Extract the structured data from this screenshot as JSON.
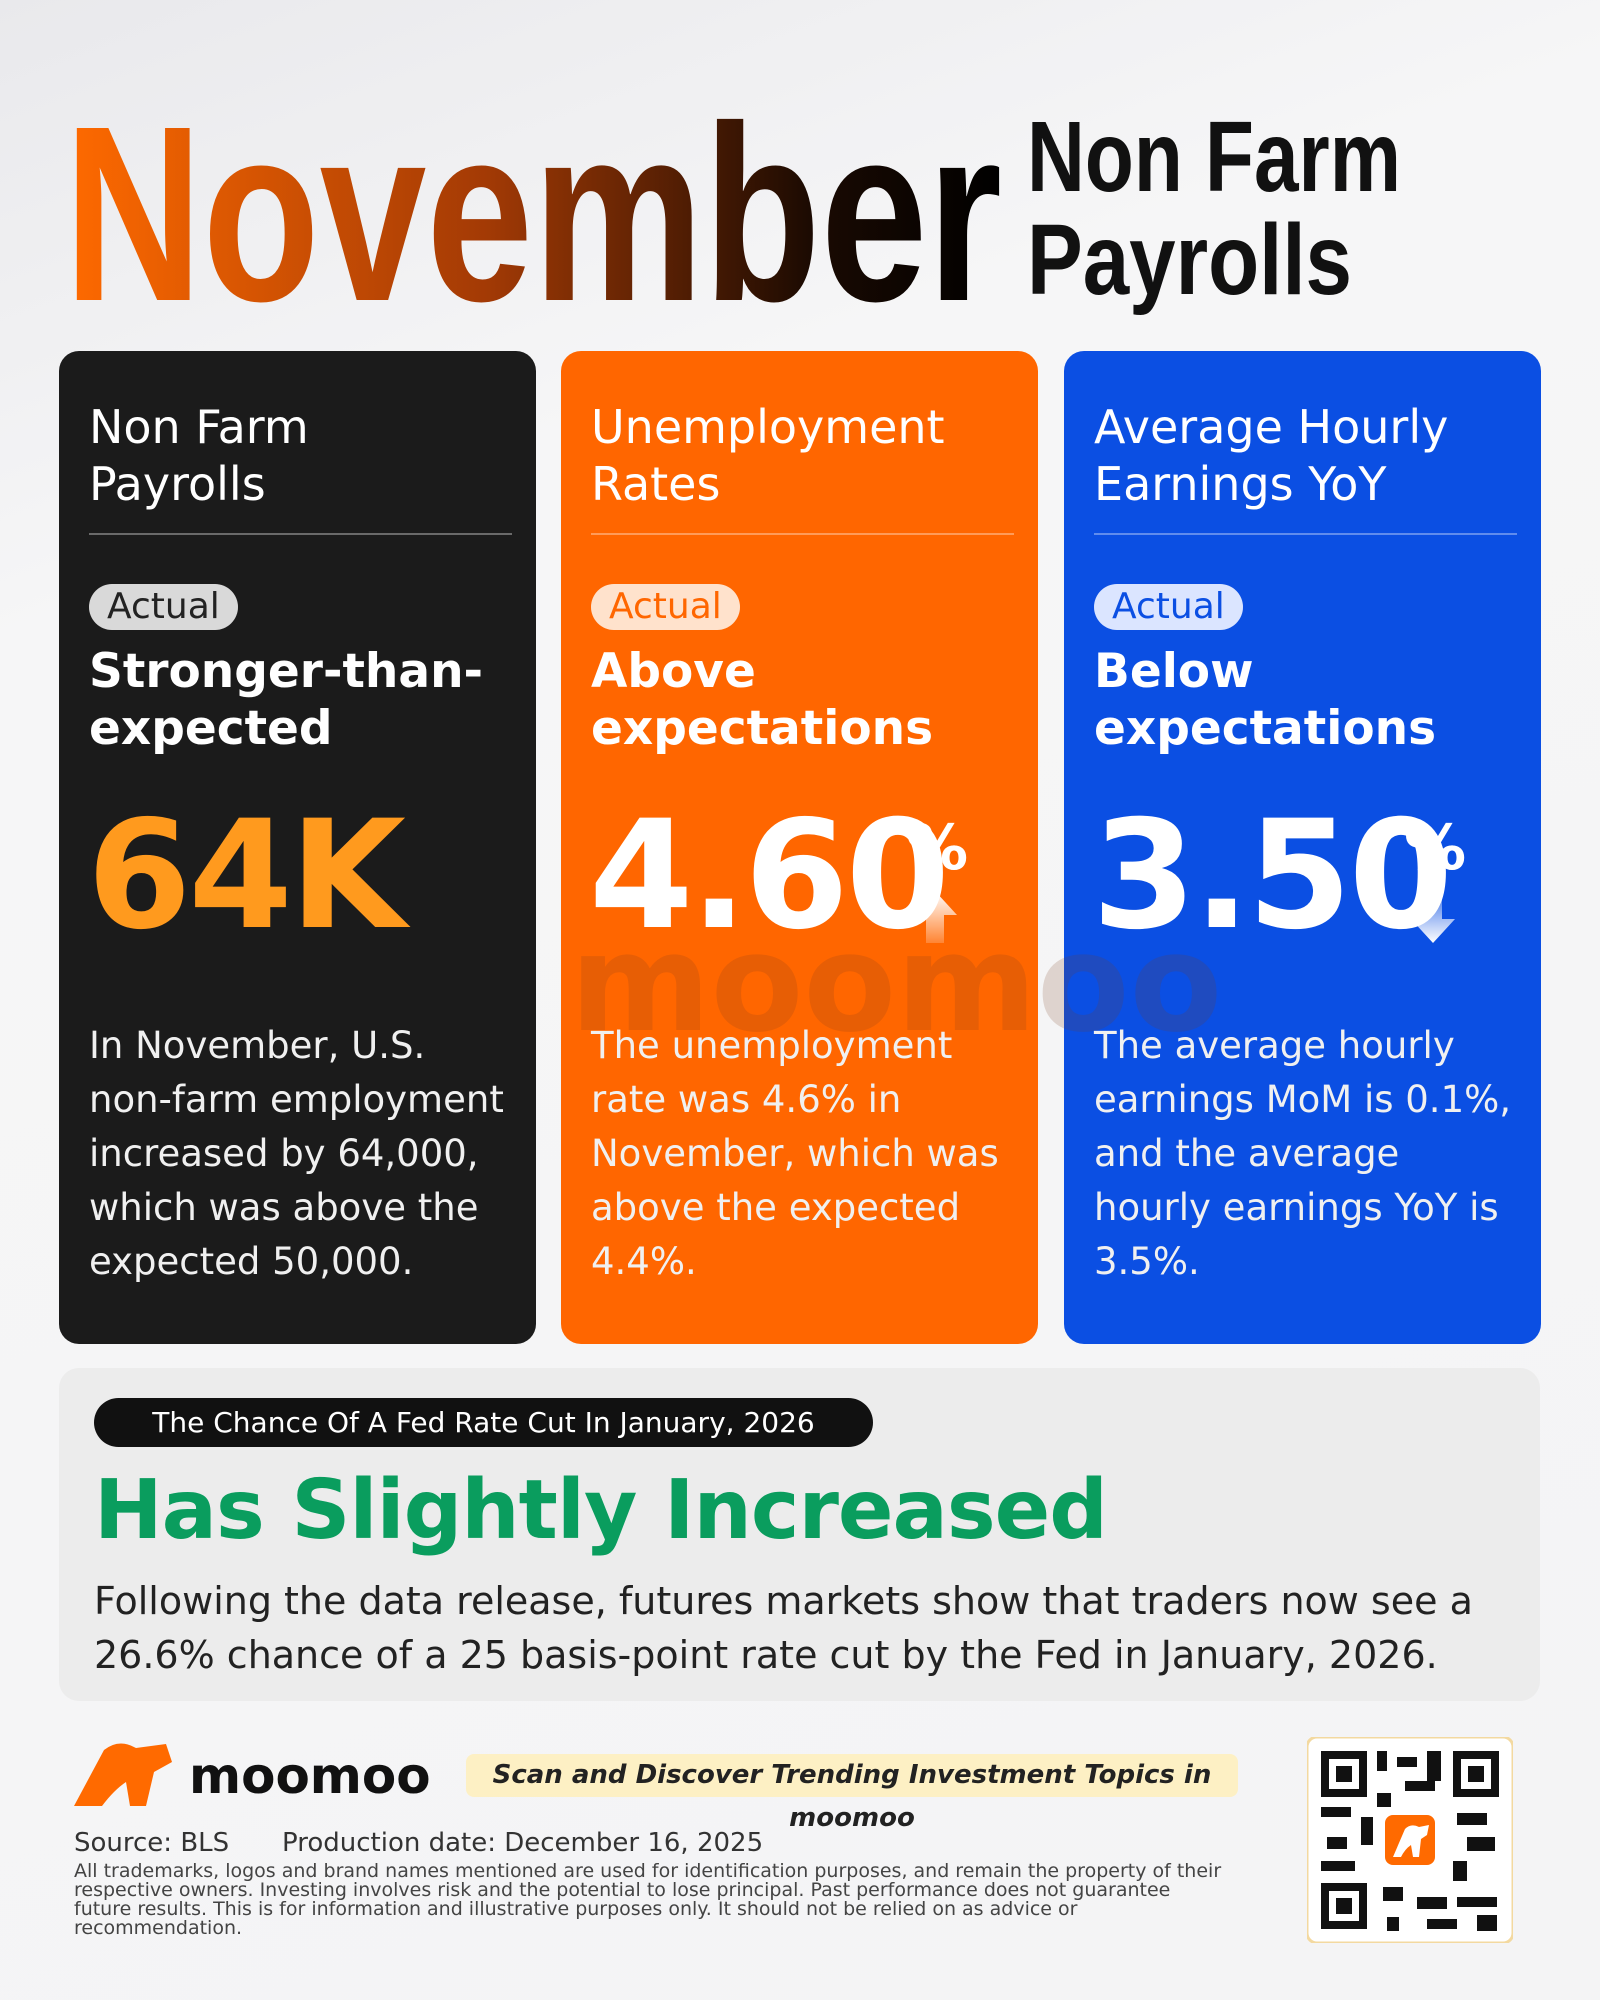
{
  "header": {
    "title": "November",
    "subtitle_lines": [
      "Non Farm",
      "Payrolls"
    ]
  },
  "cards": [
    {
      "title_lines": [
        "Non Farm",
        "Payrolls"
      ],
      "badge": "Actual",
      "verdict_lines": [
        "Stronger-than-",
        "expected"
      ],
      "value": "64K",
      "unit": null,
      "description": "In November, U.S. non-farm employment increased by 64,000, which was above the expected 50,000."
    },
    {
      "title_lines": [
        "Unemployment",
        "Rates"
      ],
      "badge": "Actual",
      "verdict_lines": [
        "Above",
        "expectations"
      ],
      "value": "4.60",
      "unit": "%",
      "description": "The unemployment rate was 4.6% in November, which was above the expected 4.4%."
    },
    {
      "title_lines": [
        "Average Hourly",
        "Earnings YoY"
      ],
      "badge": "Actual",
      "verdict_lines": [
        "Below",
        "expectations"
      ],
      "value": "3.50",
      "unit": "%",
      "description": "The average hourly earnings MoM is 0.1%, and the average hourly earnings YoY is 3.5%."
    }
  ],
  "fed": {
    "tag": "The Chance Of A Fed Rate Cut In January, 2026",
    "headline": "Has Slightly Increased",
    "body": "Following the data release, futures markets show that traders now see a 26.6% chance of a 25 basis-point rate cut by the Fed in January, 2026."
  },
  "footer": {
    "brand": "moomoo",
    "slogan": "Scan and Discover Trending Investment Topics in moomoo",
    "source": "Source: BLS",
    "production_date": "Production date: December 16, 2025",
    "disclaimer": "All trademarks, logos and brand names mentioned are used for identification purposes, and remain the property of their respective owners. Investing involves risk and the potential to lose principal. Past performance does not guarantee future results. This is for information and illustrative purposes only. It should not be relied on as advice or recommendation."
  }
}
